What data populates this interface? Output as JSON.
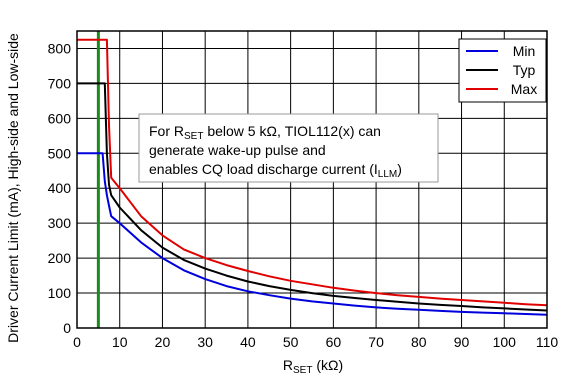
{
  "chart_data": {
    "type": "line",
    "xlabel": {
      "main": "R",
      "sub": "SET",
      "rest": " (kΩ)"
    },
    "ylabel": "Driver Current Limit (mA), High-side and Low-side",
    "xlim": [
      0,
      110
    ],
    "ylim": [
      0,
      850
    ],
    "xticks": [
      "0",
      "10",
      "20",
      "30",
      "40",
      "50",
      "60",
      "70",
      "80",
      "90",
      "100",
      "110"
    ],
    "yticks": [
      "0",
      "100",
      "200",
      "300",
      "400",
      "500",
      "600",
      "700",
      "800"
    ],
    "grid": true,
    "legend_position": "top-right",
    "annotation": {
      "line1_pre": "For R",
      "line1_sub": "SET",
      "line1_post": " below 5 kΩ, TIOL112(x) can",
      "line2": "generate wake-up pulse and",
      "line3_pre": "enables CQ load discharge current (I",
      "line3_sub": "LLM",
      "line3_post": ")"
    },
    "marker_line": {
      "x": 5,
      "color": "#1a8a1a"
    },
    "series": [
      {
        "name": "Min",
        "color": "#0000dd",
        "points": [
          [
            0,
            500
          ],
          [
            6,
            500
          ],
          [
            6.5,
            420
          ],
          [
            7,
            380
          ],
          [
            7.5,
            350
          ],
          [
            8,
            320
          ],
          [
            10,
            300
          ],
          [
            15,
            245
          ],
          [
            20,
            200
          ],
          [
            25,
            165
          ],
          [
            30,
            140
          ],
          [
            35,
            120
          ],
          [
            40,
            105
          ],
          [
            45,
            94
          ],
          [
            50,
            84
          ],
          [
            55,
            76
          ],
          [
            60,
            70
          ],
          [
            65,
            64
          ],
          [
            70,
            59
          ],
          [
            75,
            55
          ],
          [
            80,
            52
          ],
          [
            85,
            49
          ],
          [
            90,
            46
          ],
          [
            95,
            44
          ],
          [
            100,
            42
          ],
          [
            105,
            40
          ],
          [
            110,
            38
          ]
        ]
      },
      {
        "name": "Typ",
        "color": "#000000",
        "points": [
          [
            0,
            700
          ],
          [
            6.5,
            700
          ],
          [
            7,
            500
          ],
          [
            7.5,
            410
          ],
          [
            8,
            380
          ],
          [
            10,
            345
          ],
          [
            15,
            280
          ],
          [
            20,
            230
          ],
          [
            25,
            195
          ],
          [
            30,
            170
          ],
          [
            35,
            150
          ],
          [
            40,
            133
          ],
          [
            45,
            120
          ],
          [
            50,
            109
          ],
          [
            55,
            100
          ],
          [
            60,
            92
          ],
          [
            65,
            86
          ],
          [
            70,
            80
          ],
          [
            75,
            75
          ],
          [
            80,
            70
          ],
          [
            85,
            66
          ],
          [
            90,
            63
          ],
          [
            95,
            59
          ],
          [
            100,
            56
          ],
          [
            105,
            53
          ],
          [
            110,
            50
          ]
        ]
      },
      {
        "name": "Max",
        "color": "#e00000",
        "points": [
          [
            0,
            825
          ],
          [
            7,
            825
          ],
          [
            7.5,
            580
          ],
          [
            8,
            430
          ],
          [
            10,
            400
          ],
          [
            15,
            320
          ],
          [
            20,
            265
          ],
          [
            25,
            225
          ],
          [
            30,
            200
          ],
          [
            35,
            180
          ],
          [
            40,
            163
          ],
          [
            45,
            148
          ],
          [
            50,
            135
          ],
          [
            55,
            125
          ],
          [
            60,
            115
          ],
          [
            65,
            107
          ],
          [
            70,
            100
          ],
          [
            75,
            94
          ],
          [
            80,
            89
          ],
          [
            85,
            84
          ],
          [
            90,
            80
          ],
          [
            95,
            76
          ],
          [
            100,
            72
          ],
          [
            105,
            68
          ],
          [
            110,
            65
          ]
        ]
      }
    ]
  }
}
